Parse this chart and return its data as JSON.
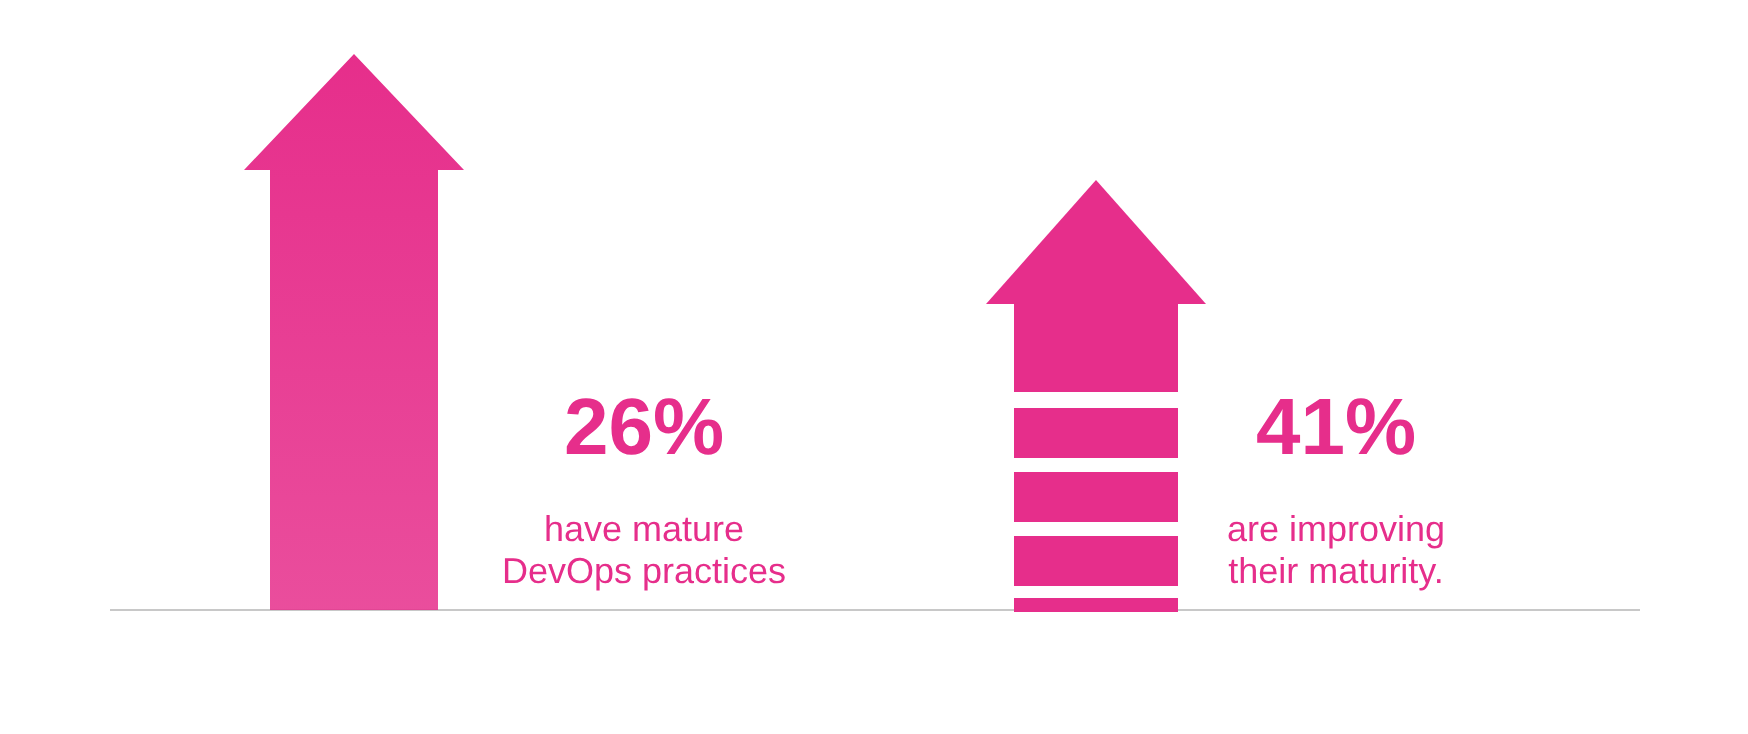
{
  "chart_data": {
    "type": "other",
    "categories": [
      "have mature DevOps practices",
      "are improving their maturity."
    ],
    "values": [
      26,
      41
    ],
    "value_labels": [
      "26%",
      "41%"
    ],
    "colors": [
      "#e62e8b",
      "#e62e8b"
    ]
  }
}
